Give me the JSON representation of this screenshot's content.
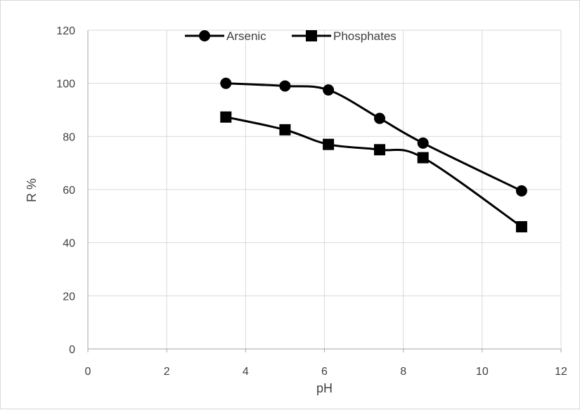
{
  "chart_data": {
    "type": "line",
    "xlabel": "pH",
    "ylabel": "R %",
    "xlim": [
      0,
      12
    ],
    "ylim": [
      0,
      120
    ],
    "xticks": [
      "0",
      "2",
      "4",
      "6",
      "8",
      "10",
      "12"
    ],
    "yticks": [
      "0",
      "20",
      "40",
      "60",
      "80",
      "100",
      "120"
    ],
    "grid": true,
    "smooth": true,
    "legend_position": "top",
    "series": [
      {
        "name": "Arsenic",
        "marker": "circle",
        "color": "#000000",
        "x": [
          3.5,
          5.0,
          6.1,
          7.4,
          8.5,
          11.0
        ],
        "y": [
          100,
          99,
          97.5,
          86.8,
          77.5,
          59.5
        ]
      },
      {
        "name": "Phosphates",
        "marker": "square",
        "color": "#000000",
        "x": [
          3.5,
          5.0,
          6.1,
          7.4,
          8.5,
          11.0
        ],
        "y": [
          87.3,
          82.5,
          77,
          75,
          72,
          46
        ]
      }
    ]
  }
}
